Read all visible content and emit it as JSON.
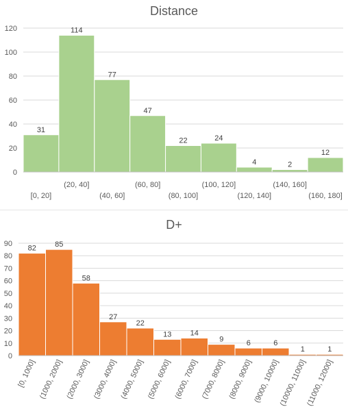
{
  "chart_data": [
    {
      "type": "bar",
      "title": "Distance",
      "categories": [
        "[0, 20]",
        "(20, 40]",
        "(40, 60]",
        "(60, 80]",
        "(80, 100]",
        "(100, 120]",
        "(120, 140]",
        "(140, 160]",
        "(160, 180]"
      ],
      "values": [
        31,
        114,
        77,
        47,
        22,
        24,
        4,
        2,
        12
      ],
      "ylim": [
        0,
        120
      ],
      "yticks": [
        0,
        20,
        40,
        60,
        80,
        100,
        120
      ],
      "xlabel": "",
      "ylabel": "",
      "color": "#a9d18e",
      "grid": true,
      "legend": "none",
      "label_style": "staggered"
    },
    {
      "type": "bar",
      "title": "D+",
      "categories": [
        "[0, 1000]",
        "(1000, 2000]",
        "(2000, 3000]",
        "(3000, 4000]",
        "(4000, 5000]",
        "(5000, 6000]",
        "(6000, 7000]",
        "(7000, 8000]",
        "(8000, 9000]",
        "(9000, 10000]",
        "(10000, 11000]",
        "(11000, 12000]"
      ],
      "values": [
        82,
        85,
        58,
        27,
        22,
        13,
        14,
        9,
        6,
        6,
        1,
        1
      ],
      "ylim": [
        0,
        90
      ],
      "yticks": [
        0,
        10,
        20,
        30,
        40,
        50,
        60,
        70,
        80,
        90
      ],
      "xlabel": "",
      "ylabel": "",
      "color": "#ed7d31",
      "grid": true,
      "legend": "none",
      "label_style": "rotated"
    }
  ]
}
